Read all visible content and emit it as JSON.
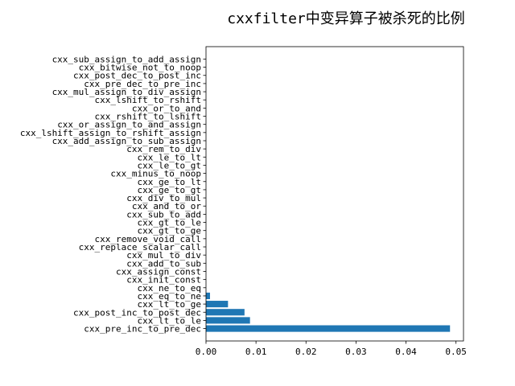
{
  "chart_data": {
    "type": "bar",
    "orientation": "horizontal",
    "title": "cxxfilter中变异算子被杀死的比例",
    "xlabel": "",
    "ylabel": "",
    "xlim": [
      0,
      0.0515
    ],
    "xticks": [
      "0.00",
      "0.01",
      "0.02",
      "0.03",
      "0.04",
      "0.05"
    ],
    "xtick_values": [
      0,
      0.01,
      0.02,
      0.03,
      0.04,
      0.05
    ],
    "grid": false,
    "bar_color": "#1f77b4",
    "categories": [
      "cxx_pre_inc_to_pre_dec",
      "cxx_lt_to_le",
      "cxx_post_inc_to_post_dec",
      "cxx_lt_to_ge",
      "cxx_eq_to_ne",
      "cxx_ne_to_eq",
      "cxx_init_const",
      "cxx_assign_const",
      "cxx_add_to_sub",
      "cxx_mul_to_div",
      "cxx_replace_scalar_call",
      "cxx_remove_void_call",
      "cxx_gt_to_ge",
      "cxx_gt_to_le",
      "cxx_sub_to_add",
      "cxx_and_to_or",
      "cxx_div_to_mul",
      "cxx_ge_to_gt",
      "cxx_ge_to_lt",
      "cxx_minus_to_noop",
      "cxx_le_to_gt",
      "cxx_le_to_lt",
      "cxx_rem_to_div",
      "cxx_add_assign_to_sub_assign",
      "cxx_lshift_assign_to_rshift_assign",
      "cxx_or_assign_to_and_assign",
      "cxx_rshift_to_lshift",
      "cxx_or_to_and",
      "cxx_lshift_to_rshift",
      "cxx_mul_assign_to_div_assign",
      "cxx_pre_dec_to_pre_inc",
      "cxx_post_dec_to_post_inc",
      "cxx_bitwise_not_to_noop",
      "cxx_sub_assign_to_add_assign"
    ],
    "values": [
      0.0488,
      0.0088,
      0.0077,
      0.0044,
      0.0008,
      0,
      0,
      0,
      0,
      0,
      0,
      0,
      0,
      0,
      0,
      0,
      0,
      0,
      0,
      0,
      0,
      0,
      0,
      0,
      0,
      0,
      0,
      0,
      0,
      0,
      0,
      0,
      0,
      0
    ]
  }
}
